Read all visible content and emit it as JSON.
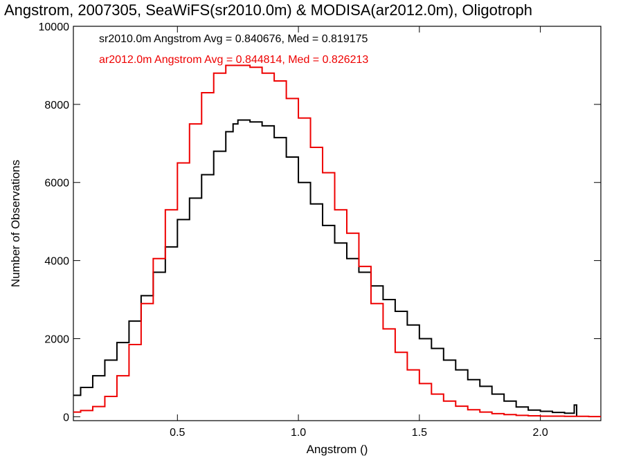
{
  "chart_data": {
    "type": "line",
    "title": "Angstrom, 2007305, SeaWiFS(sr2010.0m) & MODISA(ar2012.0m), Oligotroph",
    "xlabel": "Angstrom ()",
    "ylabel": "Number of Observations",
    "xlim": [
      0.07,
      2.25
    ],
    "ylim": [
      -100,
      10000
    ],
    "xticks": [
      0.5,
      1.0,
      1.5,
      2.0
    ],
    "xtick_labels": [
      "0.5",
      "1.0",
      "1.5",
      "2.0"
    ],
    "yticks": [
      0,
      2000,
      4000,
      6000,
      8000,
      10000
    ],
    "ytick_labels": [
      "0",
      "2000",
      "4000",
      "6000",
      "8000",
      "10000"
    ],
    "grid": false,
    "legend": "top-left",
    "annotations": [
      {
        "text": "sr2010.0m Angstrom Avg = 0.840676, Med = 0.819175",
        "color": "#000000"
      },
      {
        "text": "ar2012.0m Angstrom Avg = 0.844814, Med = 0.826213",
        "color": "#ee0000"
      }
    ],
    "series": [
      {
        "color": "#000000",
        "step": true,
        "x": [
          0.07,
          0.1,
          0.15,
          0.2,
          0.25,
          0.3,
          0.35,
          0.4,
          0.45,
          0.5,
          0.55,
          0.6,
          0.65,
          0.7,
          0.73,
          0.75,
          0.8,
          0.85,
          0.9,
          0.95,
          1.0,
          1.05,
          1.1,
          1.15,
          1.2,
          1.25,
          1.3,
          1.35,
          1.4,
          1.45,
          1.5,
          1.55,
          1.6,
          1.65,
          1.7,
          1.75,
          1.8,
          1.85,
          1.9,
          1.95,
          2.0,
          2.05,
          2.1,
          2.14,
          2.15
        ],
        "y": [
          550,
          750,
          1050,
          1450,
          1900,
          2450,
          3100,
          3700,
          4350,
          5050,
          5600,
          6200,
          6800,
          7300,
          7500,
          7600,
          7550,
          7450,
          7150,
          6650,
          6000,
          5450,
          4900,
          4450,
          4050,
          3700,
          3350,
          3000,
          2700,
          2350,
          2000,
          1750,
          1450,
          1200,
          950,
          780,
          580,
          400,
          250,
          170,
          140,
          110,
          90,
          300,
          0
        ]
      },
      {
        "color": "#ee0000",
        "step": true,
        "x": [
          0.07,
          0.1,
          0.15,
          0.2,
          0.25,
          0.3,
          0.35,
          0.4,
          0.45,
          0.5,
          0.55,
          0.6,
          0.65,
          0.7,
          0.75,
          0.8,
          0.85,
          0.9,
          0.95,
          1.0,
          1.05,
          1.1,
          1.15,
          1.2,
          1.25,
          1.3,
          1.35,
          1.4,
          1.45,
          1.5,
          1.55,
          1.6,
          1.65,
          1.7,
          1.75,
          1.8,
          1.85,
          1.9,
          1.95,
          2.0,
          2.1,
          2.2,
          2.25
        ],
        "y": [
          120,
          160,
          260,
          520,
          1050,
          1850,
          2900,
          4050,
          5300,
          6500,
          7500,
          8300,
          8800,
          9000,
          9000,
          8950,
          8800,
          8600,
          8150,
          7650,
          6900,
          6250,
          5300,
          4700,
          3850,
          2900,
          2250,
          1650,
          1200,
          850,
          580,
          400,
          270,
          180,
          120,
          80,
          55,
          35,
          25,
          15,
          10,
          5,
          5
        ]
      }
    ]
  }
}
